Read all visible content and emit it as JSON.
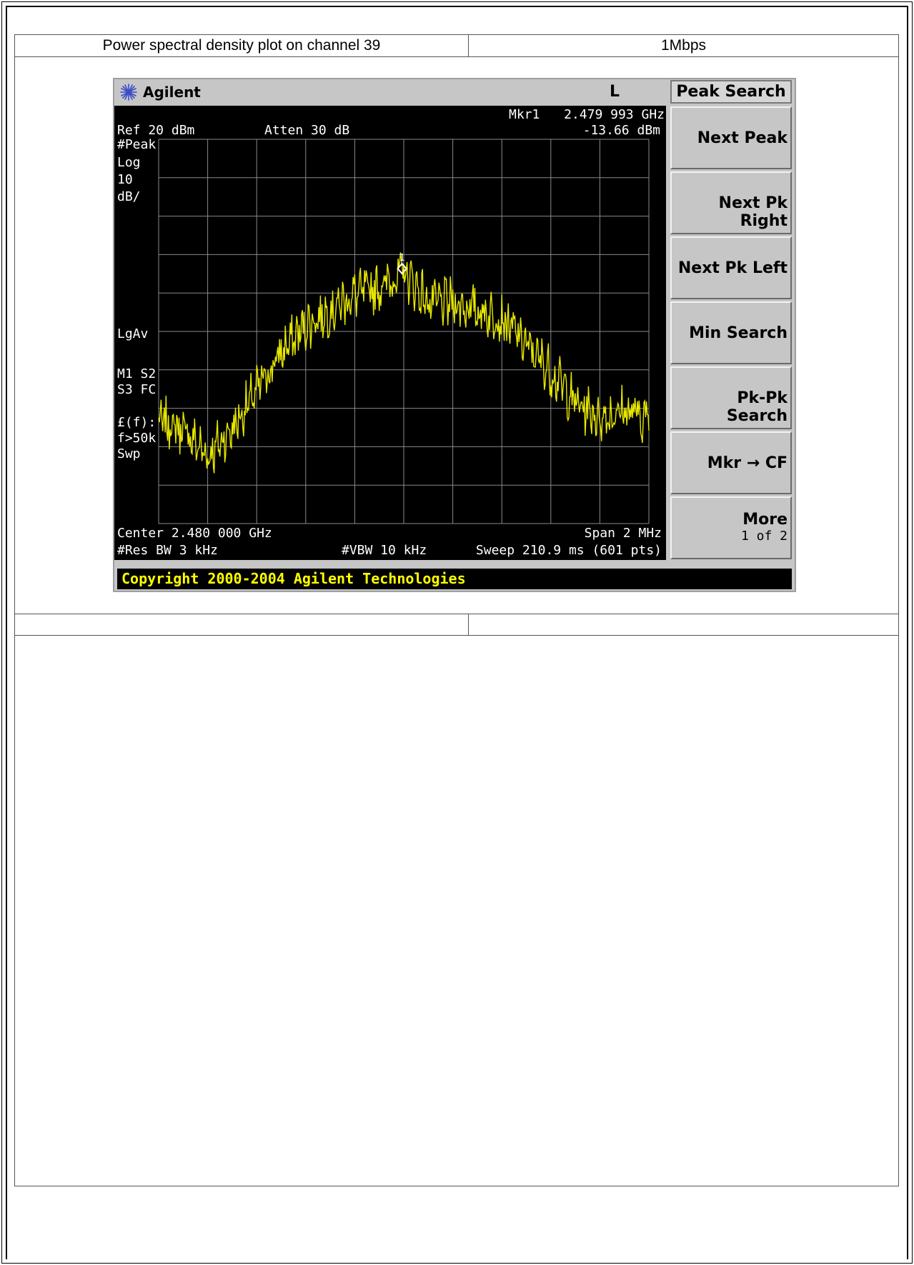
{
  "table": {
    "header_left": "Power spectral density plot on channel 39",
    "header_right": "1Mbps",
    "blank_left": "",
    "blank_right": ""
  },
  "analyzer": {
    "brand": "Agilent",
    "status_flag": "L",
    "marker_label": "Mkr1",
    "marker_freq": "2.479 993 GHz",
    "marker_level": "-13.66 dBm",
    "ref_level": "Ref 20 dBm",
    "attenuation": "Atten 30 dB",
    "left_annotations": [
      "#Peak",
      "Log",
      "10",
      "dB/",
      "LgAv",
      "M1  S2",
      "S3  FC",
      "£(f):",
      "f>50k",
      "Swp"
    ],
    "center": "Center 2.480 000 GHz",
    "span": "Span 2 MHz",
    "res_bw": "#Res BW 3 kHz",
    "vbw": "#VBW 10 kHz",
    "sweep": "Sweep 210.9 ms (601 pts)",
    "marker_number": "1",
    "copyright": "Copyright 2000-2004 Agilent Technologies",
    "trace_color": "#e8e800",
    "grid_color": "#8a8a8a"
  },
  "softkeys": {
    "menu_title": "Peak Search",
    "buttons": [
      {
        "label": "Next Peak"
      },
      {
        "label": "Next Pk Right"
      },
      {
        "label": "Next Pk Left"
      },
      {
        "label": "Min Search"
      },
      {
        "label": "Pk-Pk Search"
      },
      {
        "label": "Mkr → CF"
      },
      {
        "label": "More",
        "sub": "1 of 2"
      }
    ]
  },
  "chart_data": {
    "type": "line",
    "title": "",
    "xlabel": "",
    "ylabel": "",
    "x_center_ghz": 2.48,
    "x_span_mhz": 2,
    "xlim": [
      2.479,
      2.481
    ],
    "ylim": [
      -80,
      20
    ],
    "y_scale": "Log 10 dB/div",
    "grid": true,
    "marker": {
      "x": 2.479993,
      "y": -13.66
    },
    "series": [
      {
        "x": [
          2.479,
          2.4791,
          2.4792,
          2.4793,
          2.4794,
          2.4795,
          2.4796,
          2.4797,
          2.4798,
          2.4799,
          2.48,
          2.4801,
          2.4802,
          2.4803,
          2.4804,
          2.4805,
          2.4806,
          2.4807,
          2.4808,
          2.4809,
          2.481
        ],
        "values": [
          -53,
          -55,
          -62,
          -55,
          -45,
          -35,
          -28,
          -24,
          -20,
          -18,
          -14,
          -22,
          -22,
          -24,
          -26,
          -33,
          -40,
          -48,
          -52,
          -50,
          -52
        ]
      }
    ]
  }
}
